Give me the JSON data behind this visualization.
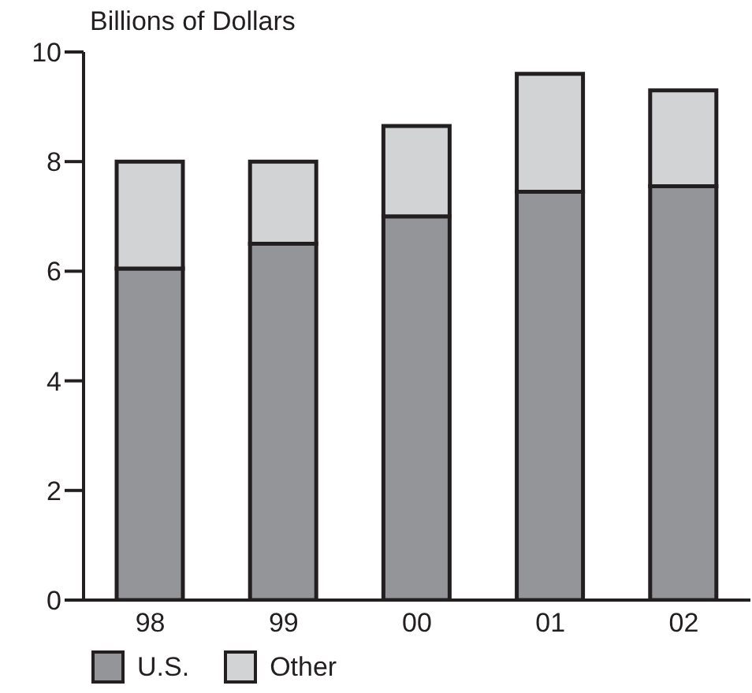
{
  "chart_data": {
    "type": "bar",
    "ylabel": "Billions of Dollars",
    "categories": [
      "98",
      "99",
      "00",
      "01",
      "02"
    ],
    "stacked": true,
    "series": [
      {
        "name": "U.S.",
        "color": "#939598",
        "values": [
          6.05,
          6.5,
          7.0,
          7.45,
          7.55
        ]
      },
      {
        "name": "Other",
        "color": "#d1d3d4",
        "values": [
          1.95,
          1.5,
          1.65,
          2.15,
          1.75
        ]
      }
    ],
    "ylim": [
      0,
      10
    ],
    "yticks": [
      0,
      2,
      4,
      6,
      8,
      10
    ],
    "grid": false,
    "legend": "bottom left"
  }
}
